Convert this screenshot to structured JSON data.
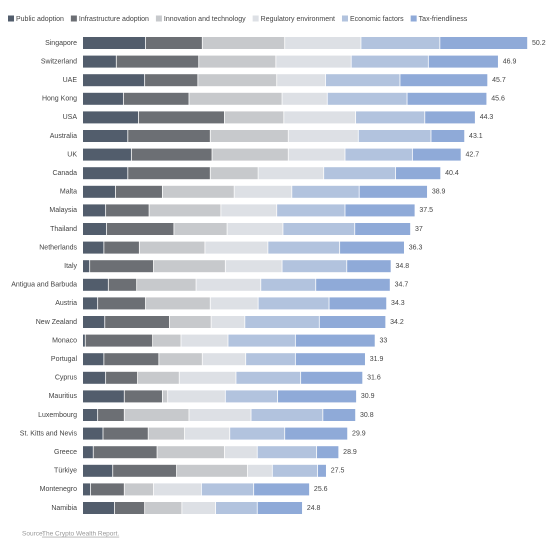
{
  "chart_data": {
    "type": "stacked_bar_horizontal",
    "categories": [
      "Singapore",
      "Switzerland",
      "UAE",
      "Hong Kong",
      "USA",
      "Australia",
      "UK",
      "Canada",
      "Malta",
      "Malaysia",
      "Thailand",
      "Netherlands",
      "Italy",
      "Antigua and Barbuda",
      "Austria",
      "New Zealand",
      "Monaco",
      "Portugal",
      "Cyprus",
      "Mauritius",
      "Luxembourg",
      "St. Kitts and Nevis",
      "Greece",
      "Türkiye",
      "Montenegro",
      "Namibia"
    ],
    "series": [
      {
        "name": "Public adoption",
        "color": "#525d6c",
        "values": [
          7.1,
          3.8,
          7.0,
          4.6,
          6.3,
          5.1,
          5.5,
          5.1,
          3.7,
          2.6,
          2.7,
          2.4,
          0.8,
          2.9,
          1.7,
          2.5,
          0.3,
          2.4,
          2.6,
          4.7,
          1.7,
          2.3,
          1.2,
          3.4,
          0.9,
          3.6
        ]
      },
      {
        "name": "Infrastructure adoption",
        "color": "#6c6f74",
        "values": [
          6.4,
          9.3,
          6.0,
          7.4,
          9.7,
          9.3,
          9.1,
          9.3,
          5.3,
          4.9,
          7.6,
          4.0,
          7.2,
          3.2,
          5.4,
          7.3,
          7.6,
          6.2,
          3.6,
          4.3,
          3.0,
          5.1,
          7.2,
          7.2,
          3.8,
          3.4
        ]
      },
      {
        "name": "Innovation and technology",
        "color": "#c7c9cc",
        "values": [
          9.3,
          8.7,
          8.9,
          10.5,
          6.7,
          8.8,
          8.6,
          5.4,
          8.1,
          8.1,
          6.0,
          7.4,
          8.1,
          6.7,
          7.3,
          4.7,
          3.2,
          4.9,
          4.7,
          0.6,
          7.3,
          4.1,
          7.6,
          8.0,
          3.3,
          4.2
        ]
      },
      {
        "name": "Regulatory environment",
        "color": "#dde0e5",
        "values": [
          8.6,
          8.5,
          5.5,
          5.1,
          8.1,
          7.9,
          6.4,
          7.4,
          6.5,
          6.3,
          6.3,
          7.1,
          6.4,
          7.3,
          5.4,
          3.8,
          5.3,
          4.9,
          6.4,
          6.5,
          7.0,
          5.1,
          3.7,
          2.8,
          5.4,
          3.8
        ]
      },
      {
        "name": "Economic factors",
        "color": "#b2c3de",
        "values": [
          8.9,
          8.7,
          8.4,
          9.0,
          7.8,
          8.2,
          7.6,
          8.1,
          7.6,
          7.7,
          8.1,
          8.1,
          7.3,
          6.2,
          8.0,
          8.4,
          7.6,
          5.6,
          7.3,
          5.9,
          8.1,
          6.2,
          6.7,
          5.1,
          5.9,
          4.7
        ]
      },
      {
        "name": "Tax-friendliness",
        "color": "#8faad8",
        "values": [
          9.9,
          7.9,
          9.9,
          9.0,
          5.7,
          3.8,
          5.5,
          5.1,
          7.7,
          7.9,
          6.3,
          7.3,
          5.0,
          8.4,
          6.5,
          7.5,
          9.0,
          7.9,
          7.0,
          8.9,
          3.7,
          7.1,
          2.5,
          1.0,
          6.3,
          5.1
        ]
      }
    ],
    "totals": [
      50.2,
      46.9,
      45.7,
      45.6,
      44.3,
      43.1,
      42.7,
      40.4,
      38.9,
      37.5,
      37,
      36.3,
      34.8,
      34.7,
      34.3,
      34.2,
      33,
      31.9,
      31.6,
      30.9,
      30.8,
      29.9,
      28.9,
      27.5,
      25.6,
      24.8
    ],
    "source": "Source:",
    "source_link": "The Crypto Wealth Report."
  }
}
